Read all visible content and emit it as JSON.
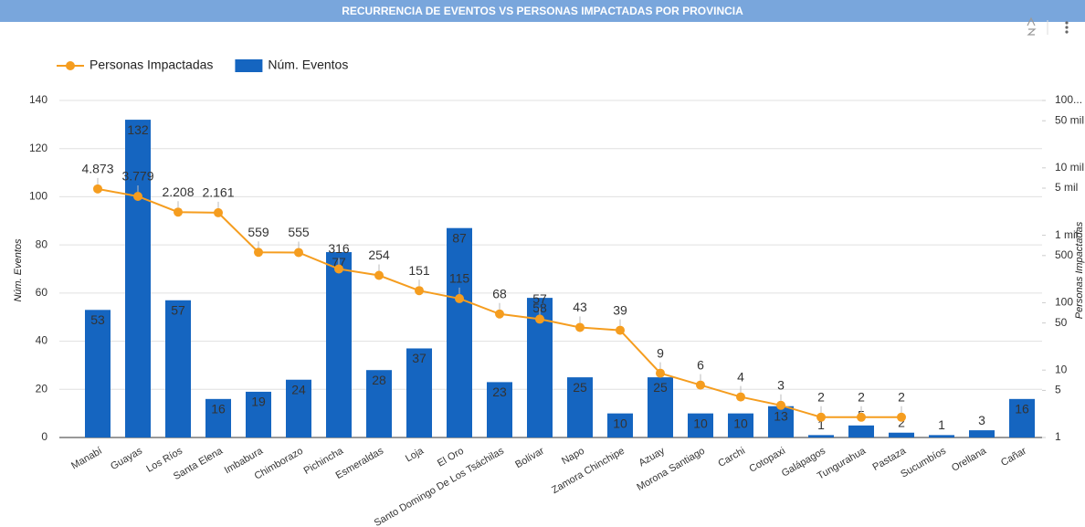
{
  "chart_data": {
    "type": "bar-line",
    "title": "RECURRENCIA DE EVENTOS VS PERSONAS IMPACTADAS POR PROVINCIA",
    "y_label": "Núm. Eventos",
    "y2_label": "Personas Impactadas",
    "categories": [
      "Manabí",
      "Guayas",
      "Los Ríos",
      "Santa Elena",
      "Imbabura",
      "Chimborazo",
      "Pichincha",
      "Esmeraldas",
      "Loja",
      "El Oro",
      "Santo Domingo De Los Tsáchilas",
      "Bolívar",
      "Napo",
      "Zamora Chinchipe",
      "Azuay",
      "Morona Santiago",
      "Carchi",
      "Cotopaxi",
      "Galápagos",
      "Tungurahua",
      "Pastaza",
      "Sucumbíos",
      "Orellana",
      "Cañar"
    ],
    "series": [
      {
        "name": "Personas Impactadas",
        "type": "line",
        "axis": "y2",
        "color": "#f59d1f",
        "values": [
          4873,
          3779,
          2208,
          2161,
          559,
          555,
          316,
          254,
          151,
          115,
          68,
          57,
          43,
          39,
          9,
          6,
          4,
          3,
          2,
          2,
          2,
          null,
          null,
          null
        ],
        "value_labels": [
          "4.873",
          "3.779",
          "2.208",
          "2.161",
          "559",
          "555",
          "316",
          "254",
          "151",
          "115",
          "68",
          "57",
          "43",
          "39",
          "9",
          "6",
          "4",
          "3",
          "2",
          "2",
          "2",
          null,
          null,
          null
        ]
      },
      {
        "name": "Núm. Eventos",
        "type": "bar",
        "color": "#1565c0",
        "values": [
          53,
          132,
          57,
          16,
          19,
          24,
          77,
          28,
          37,
          87,
          23,
          58,
          25,
          10,
          25,
          10,
          10,
          13,
          1,
          5,
          2,
          1,
          3,
          16
        ]
      }
    ],
    "ylim": [
      0,
      140
    ],
    "yticks": [
      0,
      20,
      40,
      60,
      80,
      100,
      120,
      140
    ],
    "y2lim": [
      1,
      100000
    ],
    "y2_log": true,
    "y2ticks": [
      1,
      5,
      10,
      50,
      100,
      500,
      {
        "value": 1000,
        "label": "1 mil"
      },
      {
        "value": 5000,
        "label": "5 mil"
      },
      {
        "value": 10000,
        "label": "10 mil"
      },
      {
        "value": 50000,
        "label": "50 mil"
      },
      {
        "value": 100000,
        "label": "100..."
      }
    ],
    "grid": true
  }
}
